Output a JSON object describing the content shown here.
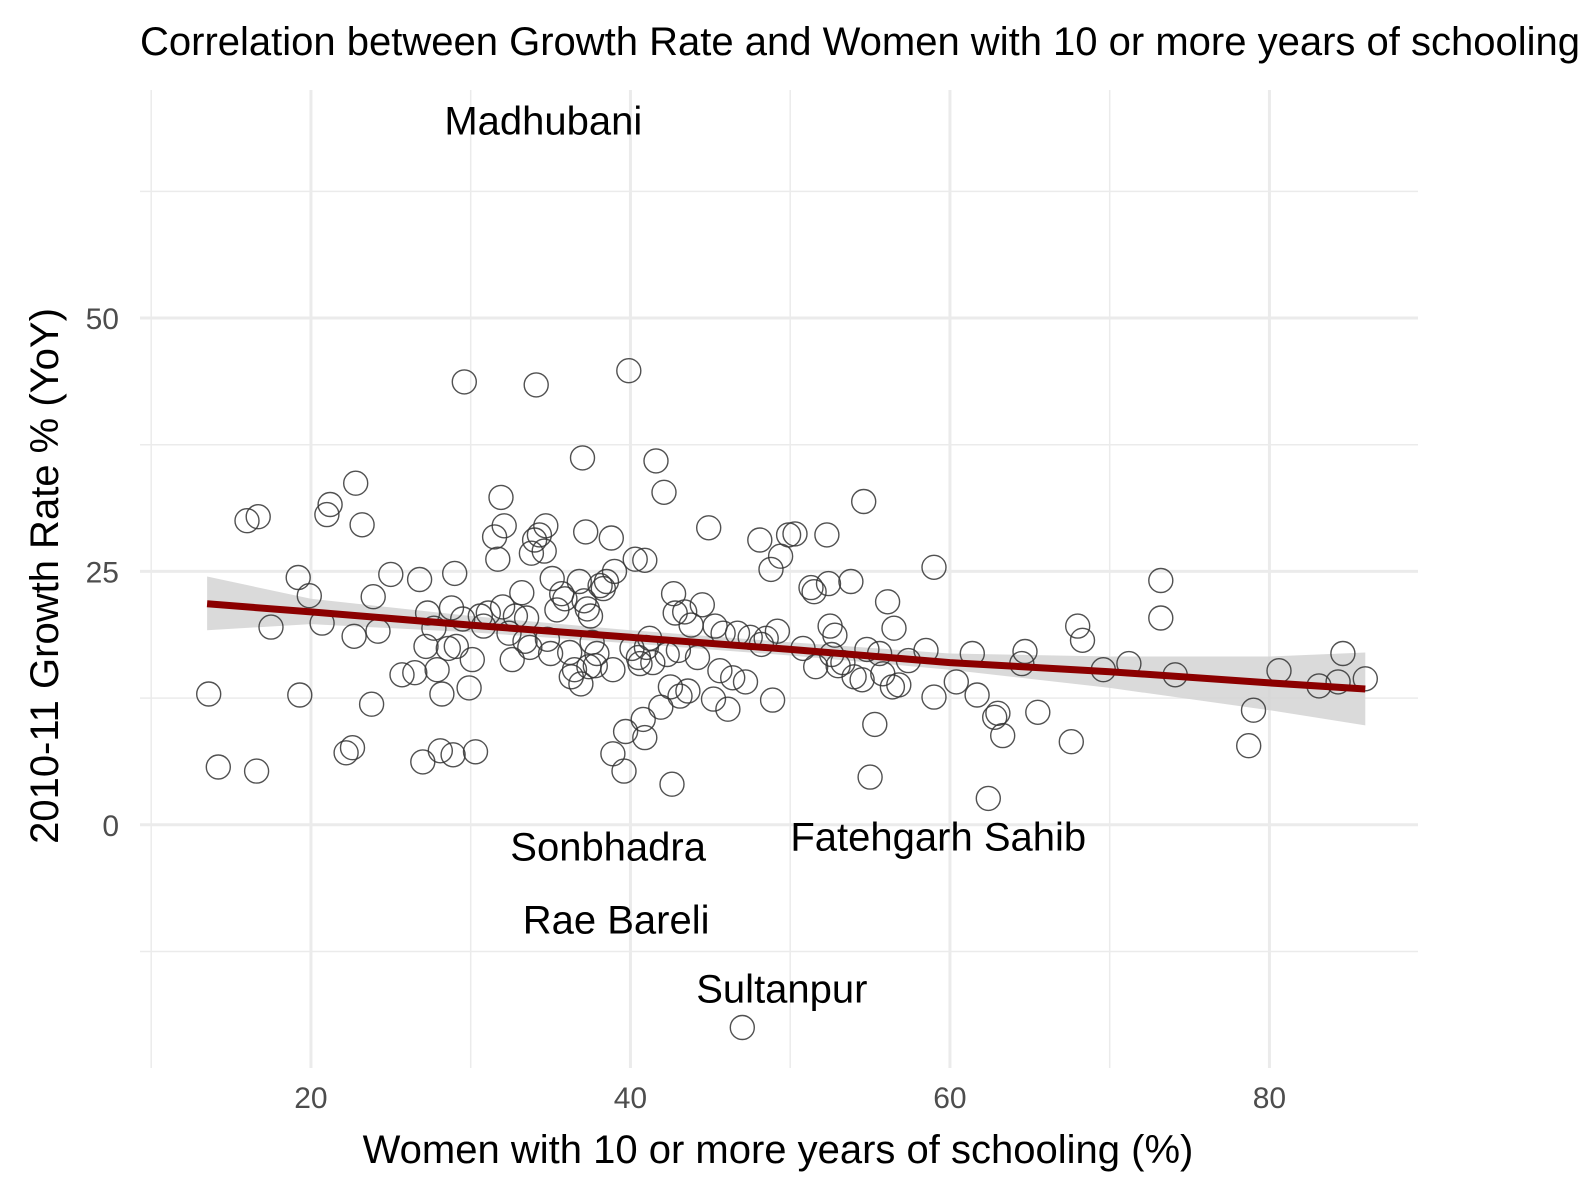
{
  "chart_data": {
    "type": "scatter",
    "title": "Correlation between Growth Rate and Women with 10 or more years of schooling",
    "xlabel": "Women with 10 or more years of schooling (%)",
    "ylabel": "2010-11 Growth Rate % (YoY)",
    "xlim": [
      9.3,
      89.3
    ],
    "ylim": [
      -24,
      72.5
    ],
    "x_ticks": [
      20,
      40,
      60,
      80
    ],
    "y_ticks": [
      0,
      25,
      50
    ],
    "grid": true,
    "colors": {
      "points": "#333333",
      "trend": "#8b0000",
      "band": "#d3d3d3",
      "grid": "#ebebeb"
    },
    "annotations": [
      {
        "text": "Madhubani",
        "x": 27.1,
        "y": 68.7
      },
      {
        "text": "Sonbhadra",
        "x": 35.6,
        "y": -5.5
      },
      {
        "text": "Rae Bareli",
        "x": 36.1,
        "y": -12.9
      },
      {
        "text": "Sultanpur",
        "x": 46.6,
        "y": -19.5
      },
      {
        "text": "Fatehgarh Sahib",
        "x": 62.4,
        "y": 2.6
      }
    ],
    "trend": {
      "x": [
        13.5,
        20,
        30,
        40,
        50,
        60,
        70,
        80,
        86
      ],
      "y": [
        21.8,
        21.0,
        19.7,
        18.5,
        17.3,
        16.0,
        15.1,
        14.0,
        13.4
      ],
      "lower": [
        19.2,
        19.8,
        19.0,
        17.9,
        16.7,
        15.3,
        13.5,
        11.3,
        9.8
      ],
      "upper": [
        24.5,
        22.3,
        20.6,
        19.2,
        18.0,
        16.9,
        16.6,
        16.6,
        17.0
      ]
    },
    "points": [
      [
        13.6,
        12.9
      ],
      [
        14.2,
        5.7
      ],
      [
        16.0,
        30.0
      ],
      [
        16.7,
        30.4
      ],
      [
        16.6,
        5.3
      ],
      [
        17.5,
        19.5
      ],
      [
        19.2,
        24.4
      ],
      [
        19.3,
        12.8
      ],
      [
        19.9,
        22.6
      ],
      [
        20.7,
        19.9
      ],
      [
        21.0,
        30.6
      ],
      [
        21.2,
        31.6
      ],
      [
        22.2,
        7.1
      ],
      [
        22.6,
        7.6
      ],
      [
        22.7,
        18.6
      ],
      [
        22.8,
        33.7
      ],
      [
        23.2,
        29.6
      ],
      [
        23.8,
        11.9
      ],
      [
        23.9,
        22.5
      ],
      [
        24.2,
        19.1
      ],
      [
        25.0,
        24.7
      ],
      [
        25.7,
        14.8
      ],
      [
        26.5,
        15.0
      ],
      [
        26.8,
        24.2
      ],
      [
        27.0,
        6.2
      ],
      [
        27.2,
        17.6
      ],
      [
        27.3,
        20.9
      ],
      [
        27.7,
        19.4
      ],
      [
        27.9,
        15.3
      ],
      [
        28.1,
        7.3
      ],
      [
        28.2,
        12.9
      ],
      [
        28.6,
        17.4
      ],
      [
        28.8,
        21.4
      ],
      [
        28.9,
        6.9
      ],
      [
        29.0,
        24.8
      ],
      [
        29.1,
        17.6
      ],
      [
        29.5,
        20.3
      ],
      [
        29.6,
        43.7
      ],
      [
        29.9,
        13.5
      ],
      [
        30.1,
        16.3
      ],
      [
        30.3,
        7.2
      ],
      [
        30.6,
        20.6
      ],
      [
        30.8,
        19.6
      ],
      [
        31.1,
        20.9
      ],
      [
        31.5,
        28.4
      ],
      [
        31.7,
        26.2
      ],
      [
        31.9,
        32.3
      ],
      [
        32.0,
        21.5
      ],
      [
        32.1,
        29.5
      ],
      [
        32.4,
        18.9
      ],
      [
        32.6,
        16.3
      ],
      [
        32.8,
        20.6
      ],
      [
        33.2,
        22.9
      ],
      [
        33.4,
        18.1
      ],
      [
        33.5,
        20.4
      ],
      [
        33.7,
        17.5
      ],
      [
        33.8,
        26.8
      ],
      [
        34.0,
        28.1
      ],
      [
        34.1,
        43.4
      ],
      [
        34.3,
        28.6
      ],
      [
        34.6,
        27.0
      ],
      [
        34.7,
        29.5
      ],
      [
        34.8,
        18.3
      ],
      [
        35.0,
        16.9
      ],
      [
        35.1,
        24.3
      ],
      [
        35.4,
        21.2
      ],
      [
        35.7,
        22.8
      ],
      [
        35.9,
        22.3
      ],
      [
        36.2,
        17.0
      ],
      [
        36.3,
        14.6
      ],
      [
        36.5,
        15.3
      ],
      [
        36.8,
        24.0
      ],
      [
        36.9,
        13.9
      ],
      [
        37.0,
        36.2
      ],
      [
        37.1,
        22.1
      ],
      [
        37.2,
        28.9
      ],
      [
        37.3,
        21.3
      ],
      [
        37.4,
        15.6
      ],
      [
        37.5,
        20.6
      ],
      [
        37.6,
        18.0
      ],
      [
        37.8,
        15.7
      ],
      [
        37.9,
        16.9
      ],
      [
        38.1,
        23.6
      ],
      [
        38.3,
        23.3
      ],
      [
        38.5,
        24.0
      ],
      [
        38.8,
        28.3
      ],
      [
        38.9,
        15.3
      ],
      [
        39.0,
        25.0
      ],
      [
        38.9,
        7.0
      ],
      [
        39.6,
        5.3
      ],
      [
        39.7,
        9.2
      ],
      [
        39.9,
        44.8
      ],
      [
        40.1,
        17.4
      ],
      [
        40.3,
        26.2
      ],
      [
        40.5,
        16.5
      ],
      [
        40.6,
        15.9
      ],
      [
        40.8,
        10.4
      ],
      [
        40.9,
        26.1
      ],
      [
        40.9,
        8.6
      ],
      [
        41.0,
        17.5
      ],
      [
        41.2,
        18.4
      ],
      [
        41.4,
        16.0
      ],
      [
        41.6,
        35.9
      ],
      [
        41.9,
        11.6
      ],
      [
        42.1,
        32.8
      ],
      [
        42.3,
        16.8
      ],
      [
        42.5,
        13.6
      ],
      [
        42.6,
        4.0
      ],
      [
        42.7,
        22.8
      ],
      [
        42.8,
        20.9
      ],
      [
        43.0,
        17.2
      ],
      [
        43.1,
        12.7
      ],
      [
        43.4,
        21.0
      ],
      [
        43.6,
        13.2
      ],
      [
        43.8,
        19.7
      ],
      [
        44.2,
        16.5
      ],
      [
        44.5,
        21.7
      ],
      [
        44.9,
        29.3
      ],
      [
        45.2,
        12.4
      ],
      [
        45.3,
        19.6
      ],
      [
        45.6,
        15.2
      ],
      [
        45.8,
        18.9
      ],
      [
        46.1,
        11.4
      ],
      [
        46.4,
        14.5
      ],
      [
        46.7,
        18.9
      ],
      [
        47.0,
        -20.0
      ],
      [
        47.2,
        14.1
      ],
      [
        47.5,
        18.5
      ],
      [
        48.1,
        28.1
      ],
      [
        48.2,
        17.8
      ],
      [
        48.5,
        18.4
      ],
      [
        48.8,
        25.2
      ],
      [
        48.9,
        12.3
      ],
      [
        49.2,
        19.1
      ],
      [
        49.4,
        26.5
      ],
      [
        49.9,
        28.6
      ],
      [
        50.3,
        28.7
      ],
      [
        50.8,
        17.4
      ],
      [
        51.3,
        23.4
      ],
      [
        51.5,
        23.0
      ],
      [
        51.6,
        15.6
      ],
      [
        52.3,
        28.6
      ],
      [
        52.4,
        23.8
      ],
      [
        52.5,
        19.6
      ],
      [
        52.6,
        16.8
      ],
      [
        52.8,
        18.7
      ],
      [
        53.0,
        15.7
      ],
      [
        53.3,
        16.0
      ],
      [
        53.8,
        24.0
      ],
      [
        54.0,
        14.6
      ],
      [
        54.6,
        31.9
      ],
      [
        54.5,
        14.3
      ],
      [
        54.8,
        17.3
      ],
      [
        55.0,
        4.7
      ],
      [
        55.3,
        9.9
      ],
      [
        55.6,
        16.9
      ],
      [
        55.8,
        14.9
      ],
      [
        56.1,
        22.0
      ],
      [
        56.5,
        19.4
      ],
      [
        56.4,
        13.6
      ],
      [
        56.8,
        13.8
      ],
      [
        57.4,
        16.2
      ],
      [
        58.5,
        17.2
      ],
      [
        59.0,
        25.4
      ],
      [
        59.0,
        12.6
      ],
      [
        60.4,
        14.1
      ],
      [
        61.4,
        16.9
      ],
      [
        61.7,
        12.8
      ],
      [
        62.4,
        2.6
      ],
      [
        62.8,
        10.6
      ],
      [
        63.0,
        11.0
      ],
      [
        63.3,
        8.8
      ],
      [
        64.5,
        15.9
      ],
      [
        64.7,
        17.1
      ],
      [
        65.5,
        11.1
      ],
      [
        67.6,
        8.2
      ],
      [
        68.0,
        19.6
      ],
      [
        68.3,
        18.2
      ],
      [
        69.6,
        15.3
      ],
      [
        71.2,
        15.9
      ],
      [
        73.2,
        24.1
      ],
      [
        73.2,
        20.4
      ],
      [
        74.1,
        14.8
      ],
      [
        78.7,
        7.8
      ],
      [
        79.0,
        11.3
      ],
      [
        80.6,
        15.2
      ],
      [
        83.1,
        13.7
      ],
      [
        84.3,
        14.1
      ],
      [
        84.6,
        16.9
      ],
      [
        86.0,
        14.4
      ]
    ]
  }
}
